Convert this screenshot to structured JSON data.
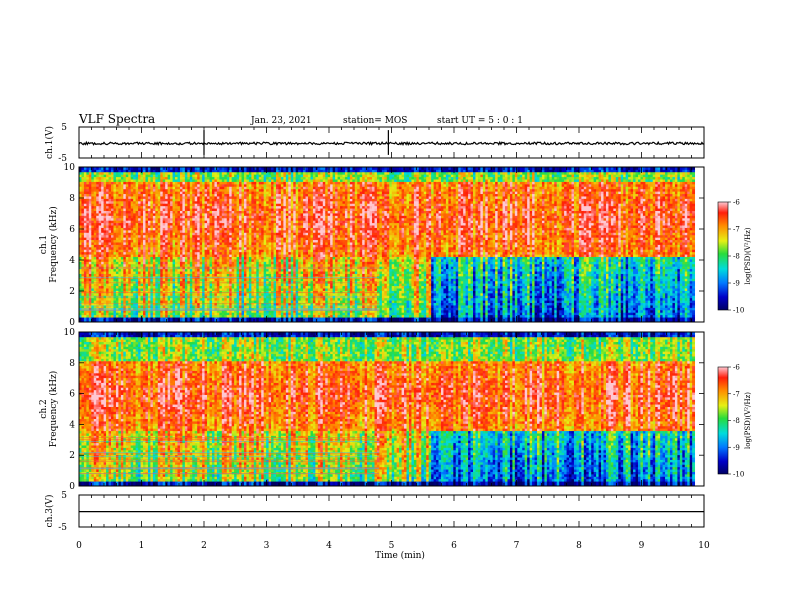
{
  "header": {
    "title": "VLF Spectra",
    "date": "Jan. 23, 2021",
    "station": "station= MOS",
    "start": "start UT =  5 : 0  : 1"
  },
  "chart_data": [
    {
      "type": "line",
      "name": "ch1-waveform-panel",
      "ylabel": "ch.1(V)",
      "ylim": [
        -5,
        5
      ],
      "yticks": [
        "5",
        "-5"
      ],
      "trace_level": -0.3,
      "xlim": [
        0,
        10
      ]
    },
    {
      "type": "heatmap",
      "name": "ch1-spectrogram",
      "ylabel_top": "ch.1",
      "ylabel": "Frequency (kHz)",
      "ylim": [
        0,
        10
      ],
      "yticks": [
        "0",
        "2",
        "4",
        "6",
        "8",
        "10"
      ],
      "xlim": [
        0,
        10
      ],
      "data_end_min": 9.85,
      "colorbar": {
        "label": "log(PSD)(V²/Hz)",
        "ticks": [
          "-6",
          "-7",
          "-8",
          "-9",
          "-10"
        ],
        "range": [
          -10,
          -6
        ]
      },
      "strong_band_khz": [
        4.2,
        9.0
      ],
      "quiet_after_min": 5.6
    },
    {
      "type": "heatmap",
      "name": "ch2-spectrogram",
      "ylabel_top": "ch.2",
      "ylabel": "Frequency (kHz)",
      "ylim": [
        0,
        10
      ],
      "yticks": [
        "0",
        "2",
        "4",
        "6",
        "8",
        "10"
      ],
      "xlim": [
        0,
        10
      ],
      "data_end_min": 9.85,
      "colorbar": {
        "label": "log(PSD)(V²/Hz)",
        "ticks": [
          "-6",
          "-7",
          "-8",
          "-9",
          "-10"
        ],
        "range": [
          -10,
          -6
        ]
      },
      "strong_band_khz": [
        3.6,
        8.2
      ],
      "quiet_after_min": 5.6
    },
    {
      "type": "line",
      "name": "ch3-waveform-panel",
      "ylabel": "ch.3(V)",
      "ylim": [
        -5,
        5
      ],
      "yticks": [
        "5",
        "-5"
      ],
      "trace_level": -0.2,
      "xlim": [
        0,
        10
      ]
    }
  ],
  "xaxis": {
    "label": "Time (min)",
    "ticks": [
      "0",
      "1",
      "2",
      "3",
      "4",
      "5",
      "6",
      "7",
      "8",
      "9",
      "10"
    ]
  },
  "colors": {
    "low": "#00008b",
    "mid": "#00c8c8",
    "green": "#30d040",
    "high": "#ff2a00"
  }
}
